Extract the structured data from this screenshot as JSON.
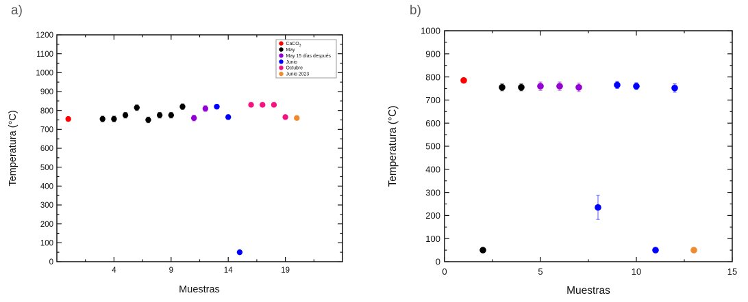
{
  "page": {
    "background": "#ffffff",
    "axis_color": "#111111",
    "panel_label_color": "#5a5a5a"
  },
  "panel_labels": {
    "a": "a)",
    "b": "b)"
  },
  "chart_data": [
    {
      "id": "a",
      "type": "scatter",
      "title": "",
      "xlabel": "Muestras",
      "ylabel": "Temperatura (°C)",
      "xlim": [
        -1,
        24
      ],
      "ylim": [
        0,
        1200
      ],
      "xticks": [
        4,
        9,
        14,
        19
      ],
      "xminors": [
        1.5,
        6.5,
        11.5,
        16.5,
        21.5
      ],
      "yticks": [
        0,
        100,
        200,
        300,
        400,
        500,
        600,
        700,
        800,
        900,
        1000,
        1100,
        1200
      ],
      "yminors": [
        50,
        150,
        250,
        350,
        450,
        550,
        650,
        750,
        850,
        950,
        1050,
        1150
      ],
      "grid": false,
      "legend": {
        "visible": true,
        "position": "top-right"
      },
      "series": [
        {
          "name": "CaCO3",
          "display": {
            "base": "CaCO",
            "sub": "3"
          },
          "color": "#ff0000",
          "points": [
            [
              0,
              755,
              8
            ]
          ]
        },
        {
          "name": "May",
          "display": {
            "base": "May",
            "sub": ""
          },
          "color": "#000000",
          "points": [
            [
              3,
              755,
              15
            ],
            [
              4,
              755,
              15
            ],
            [
              5,
              775,
              15
            ],
            [
              6,
              815,
              15
            ],
            [
              7,
              750,
              15
            ],
            [
              8,
              775,
              15
            ],
            [
              9,
              775,
              15
            ],
            [
              10,
              820,
              15
            ]
          ]
        },
        {
          "name": "May 15 días después",
          "display": {
            "base": "May 15 días después",
            "sub": ""
          },
          "color": "#9400d3",
          "points": [
            [
              11,
              760,
              15
            ],
            [
              12,
              810,
              15
            ]
          ]
        },
        {
          "name": "Junio",
          "display": {
            "base": "Junio",
            "sub": ""
          },
          "color": "#0000ff",
          "points": [
            [
              13,
              820,
              10
            ],
            [
              14,
              765,
              12
            ],
            [
              15,
              50,
              0
            ]
          ]
        },
        {
          "name": "Octubre",
          "display": {
            "base": "Octubre",
            "sub": ""
          },
          "color": "#f4127e",
          "points": [
            [
              16,
              830,
              10
            ],
            [
              17,
              830,
              10
            ],
            [
              18,
              830,
              10
            ],
            [
              19,
              765,
              10
            ]
          ]
        },
        {
          "name": "Junio 2023",
          "display": {
            "base": "Junio 2023",
            "sub": ""
          },
          "color": "#f08a2f",
          "points": [
            [
              20,
              760,
              10
            ]
          ]
        }
      ]
    },
    {
      "id": "b",
      "type": "scatter",
      "title": "",
      "xlabel": "Muestras",
      "ylabel": "Temperatura (°C)",
      "xlim": [
        0,
        15
      ],
      "ylim": [
        0,
        1000
      ],
      "xticks": [
        0,
        5,
        10,
        15
      ],
      "xminors": [
        2.5,
        7.5,
        12.5
      ],
      "yticks": [
        0,
        100,
        200,
        300,
        400,
        500,
        600,
        700,
        800,
        900,
        1000
      ],
      "yminors": [
        50,
        150,
        250,
        350,
        450,
        550,
        650,
        750,
        850,
        950
      ],
      "grid": false,
      "legend": {
        "visible": false,
        "position": "none"
      },
      "series": [
        {
          "name": "CaCO3",
          "display": {
            "base": "CaCO",
            "sub": "3"
          },
          "color": "#ff0000",
          "points": [
            [
              1,
              785,
              0
            ]
          ]
        },
        {
          "name": "May",
          "display": {
            "base": "May",
            "sub": ""
          },
          "color": "#000000",
          "points": [
            [
              2,
              50,
              0
            ],
            [
              3,
              755,
              15
            ],
            [
              4,
              755,
              15
            ]
          ]
        },
        {
          "name": "May 15 días después",
          "display": {
            "base": "May 15 días después",
            "sub": ""
          },
          "color": "#9400d3",
          "points": [
            [
              5,
              760,
              18
            ],
            [
              6,
              760,
              18
            ],
            [
              7,
              755,
              18
            ]
          ]
        },
        {
          "name": "Junio",
          "display": {
            "base": "Junio",
            "sub": ""
          },
          "color": "#0000ff",
          "points": [
            [
              8,
              235,
              52
            ],
            [
              9,
              765,
              15
            ],
            [
              10,
              760,
              15
            ],
            [
              11,
              50,
              0
            ],
            [
              12,
              752,
              18
            ]
          ]
        },
        {
          "name": "Junio 2023",
          "display": {
            "base": "Junio 2023",
            "sub": ""
          },
          "color": "#f08a2f",
          "points": [
            [
              13,
              50,
              0
            ]
          ]
        }
      ]
    }
  ]
}
